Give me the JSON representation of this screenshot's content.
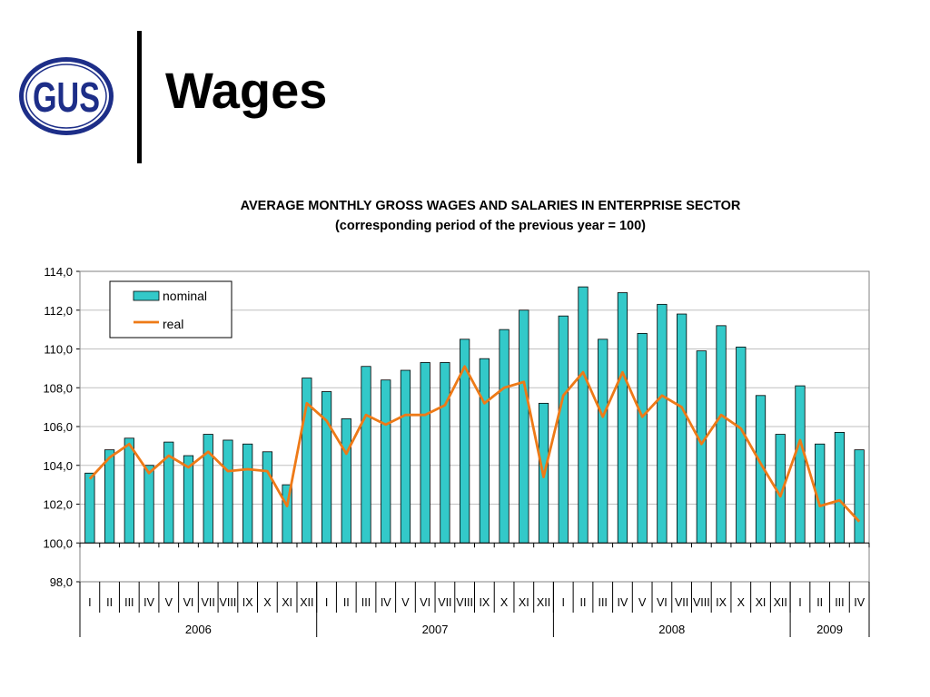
{
  "slide": {
    "title": "Wages",
    "logo_text": "GUS"
  },
  "colors": {
    "logo_blue": "#1d2e88",
    "bar_fill": "#33c9c9",
    "line": "#ee7a17"
  },
  "chart_data": {
    "type": "bar",
    "title": "AVERAGE MONTHLY GROSS WAGES AND SALARIES IN ENTERPRISE SECTOR",
    "subtitle": "(corresponding  period of  the previous year = 100)",
    "xlabel": "",
    "ylabel": "",
    "ylim": [
      98,
      114
    ],
    "yticks": [
      "98,0",
      "100,0",
      "102,0",
      "104,0",
      "106,0",
      "108,0",
      "110,0",
      "112,0",
      "114,0"
    ],
    "grid": true,
    "legend_position": "top-left",
    "categories": [
      "I",
      "II",
      "III",
      "IV",
      "V",
      "VI",
      "VII",
      "VIII",
      "IX",
      "X",
      "XI",
      "XII",
      "I",
      "II",
      "III",
      "IV",
      "V",
      "VI",
      "VII",
      "VIII",
      "IX",
      "X",
      "XI",
      "XII",
      "I",
      "II",
      "III",
      "IV",
      "V",
      "VI",
      "VII",
      "VIII",
      "IX",
      "X",
      "XI",
      "XII",
      "I",
      "II",
      "III",
      "IV"
    ],
    "years": [
      {
        "label": "2006",
        "months": 12
      },
      {
        "label": "2007",
        "months": 12
      },
      {
        "label": "2008",
        "months": 12
      },
      {
        "label": "2009",
        "months": 4
      }
    ],
    "series": [
      {
        "name": "nominal",
        "type": "bar",
        "values": [
          103.6,
          104.8,
          105.4,
          104.0,
          105.2,
          104.5,
          105.6,
          105.3,
          105.1,
          104.7,
          103.0,
          108.5,
          107.8,
          106.4,
          109.1,
          108.4,
          108.9,
          109.3,
          109.3,
          110.5,
          109.5,
          111.0,
          112.0,
          107.2,
          111.7,
          113.2,
          110.5,
          112.9,
          110.8,
          112.3,
          111.8,
          109.9,
          111.2,
          110.1,
          107.6,
          105.6,
          108.1,
          105.1,
          105.7,
          104.8
        ]
      },
      {
        "name": "real",
        "type": "line",
        "values": [
          103.3,
          104.4,
          105.1,
          103.6,
          104.5,
          103.9,
          104.7,
          103.7,
          103.8,
          103.7,
          101.9,
          107.2,
          106.3,
          104.6,
          106.6,
          106.1,
          106.6,
          106.6,
          107.1,
          109.1,
          107.2,
          108.0,
          108.3,
          103.4,
          107.6,
          108.8,
          106.5,
          108.8,
          106.5,
          107.6,
          107.0,
          105.1,
          106.6,
          105.9,
          104.1,
          102.4,
          105.3,
          101.9,
          102.2,
          101.1
        ]
      }
    ]
  }
}
